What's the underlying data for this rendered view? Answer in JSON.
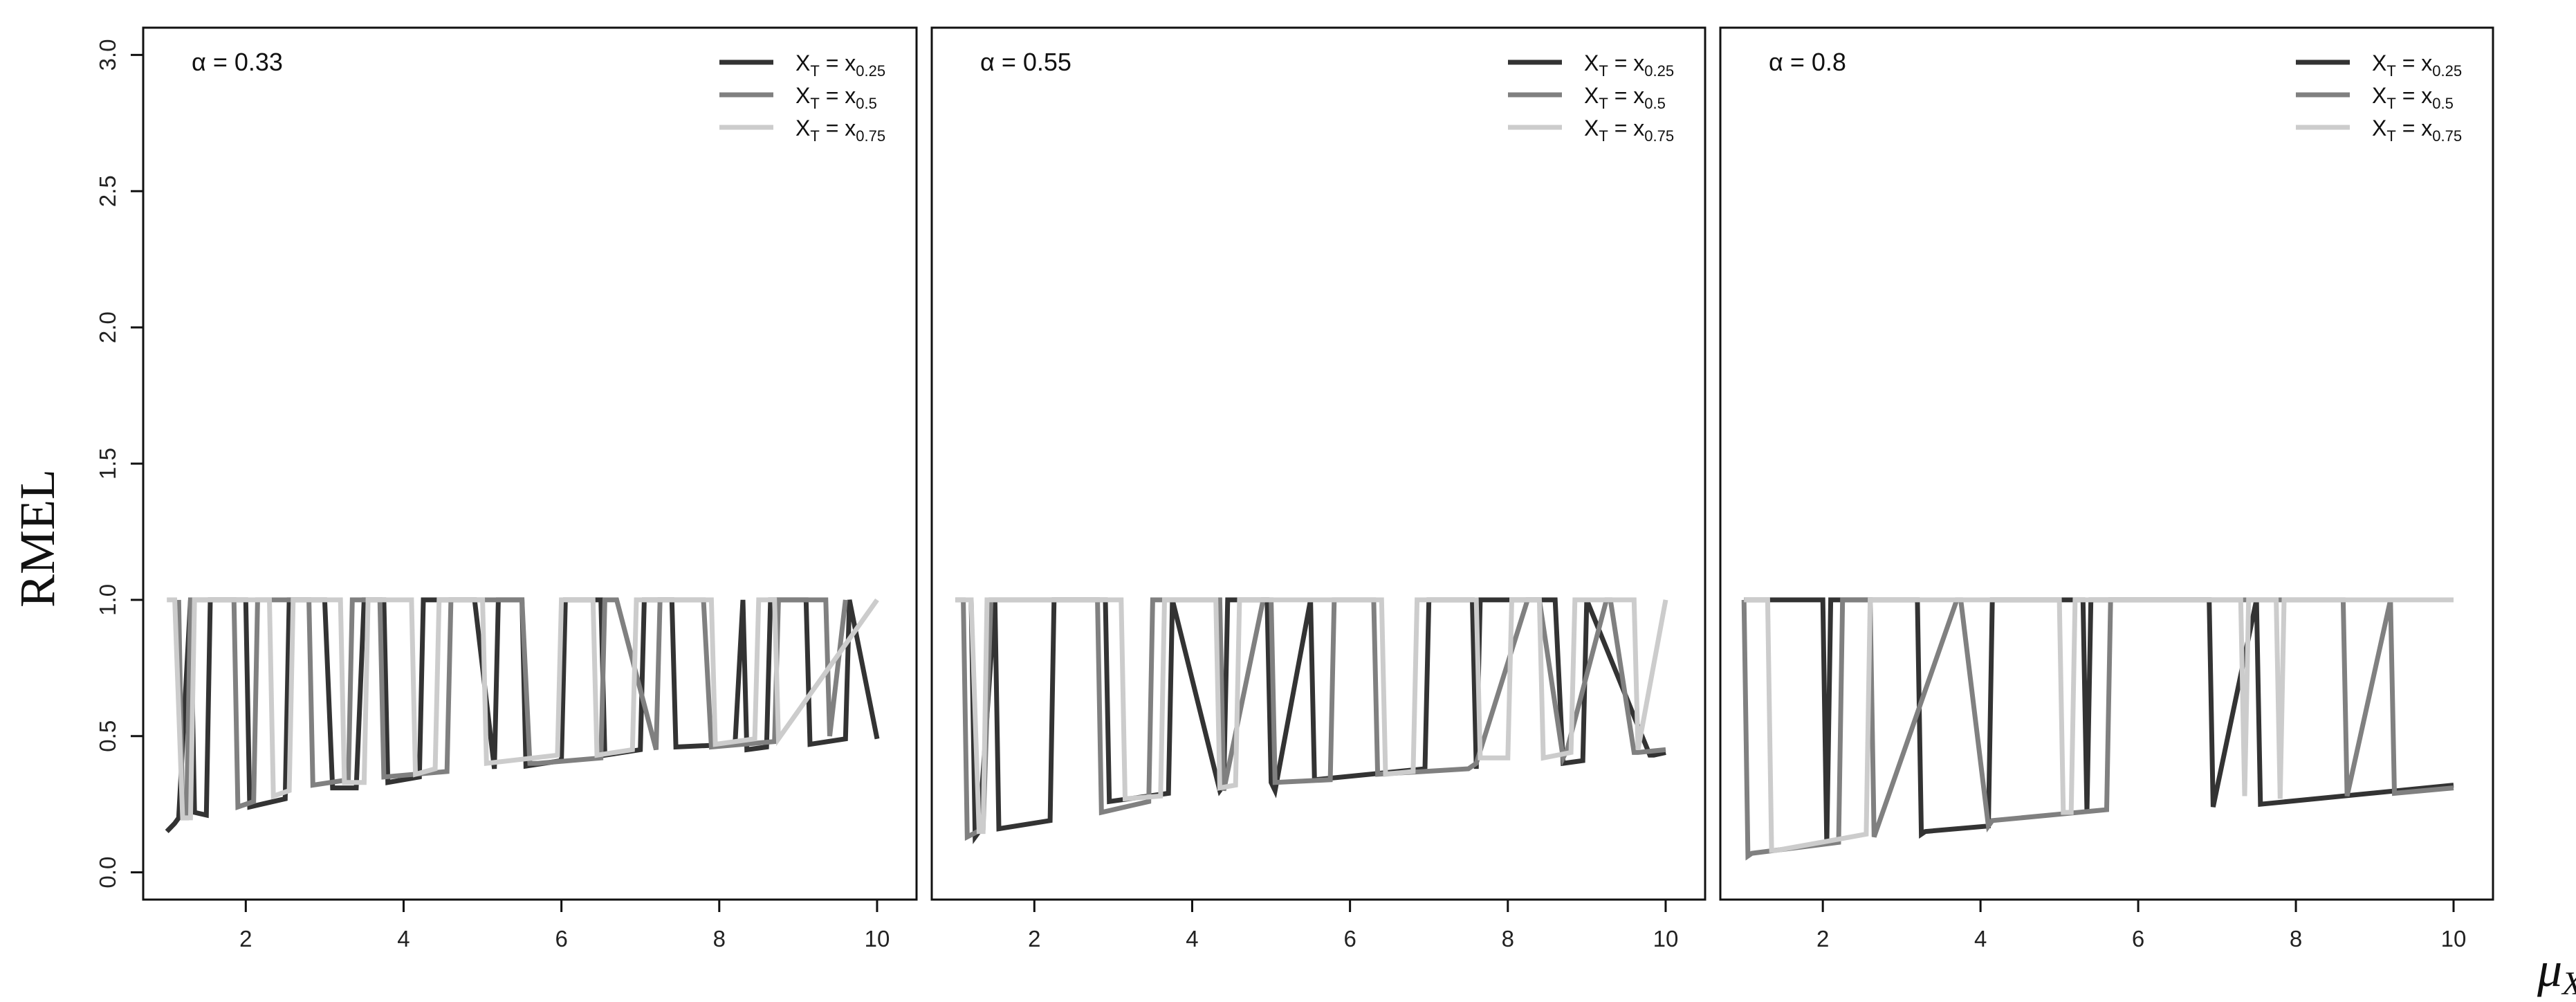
{
  "chart_data": {
    "type": "line",
    "ylabel": "RMEL",
    "xlabel": "μ",
    "xlabel_sub": "X",
    "xlim": [
      0.7,
      10.5
    ],
    "ylim": [
      -0.1,
      3.1
    ],
    "xticks": [
      2,
      4,
      6,
      8,
      10
    ],
    "yticks": [
      0.0,
      0.5,
      1.0,
      1.5,
      2.0,
      2.5,
      3.0
    ],
    "ytick_labels": [
      "0.0",
      "0.5",
      "1.0",
      "1.5",
      "2.0",
      "2.5",
      "3.0"
    ],
    "legend_position": "top-right",
    "legend": [
      {
        "base": "X",
        "base_sub": "T",
        "eq": " = x",
        "sub": "0.25",
        "color": "#333333"
      },
      {
        "base": "X",
        "base_sub": "T",
        "eq": " = x",
        "sub": "0.5",
        "color": "#808080"
      },
      {
        "base": "X",
        "base_sub": "T",
        "eq": " = x",
        "sub": "0.75",
        "color": "#cccccc"
      }
    ],
    "panels": [
      {
        "title": "α = 0.33",
        "series": [
          {
            "color": "#333333",
            "x": [
              1.0,
              1.1,
              1.15,
              1.3,
              1.35,
              1.5,
              1.55,
              2.0,
              2.05,
              2.5,
              2.55,
              3.0,
              3.1,
              3.4,
              3.5,
              3.75,
              3.8,
              4.2,
              4.25,
              4.9,
              5.15,
              5.2,
              5.5,
              5.55,
              6.0,
              6.05,
              6.5,
              6.55,
              7.0,
              7.05,
              7.4,
              7.45,
              8.2,
              8.3,
              8.35,
              8.6,
              8.65,
              9.1,
              9.15,
              9.6,
              9.65,
              10.0
            ],
            "y": [
              0.15,
              0.18,
              0.2,
              1.0,
              0.22,
              0.21,
              1.0,
              1.0,
              0.24,
              0.27,
              1.0,
              1.0,
              0.31,
              0.31,
              1.0,
              1.0,
              0.33,
              0.35,
              1.0,
              1.0,
              0.38,
              1.0,
              1.0,
              0.39,
              0.41,
              1.0,
              1.0,
              0.43,
              0.45,
              1.0,
              1.0,
              0.46,
              0.47,
              1.0,
              0.45,
              0.46,
              1.0,
              1.0,
              0.47,
              0.49,
              1.0,
              0.49
            ]
          },
          {
            "color": "#808080",
            "x": [
              1.15,
              1.2,
              1.25,
              1.3,
              1.5,
              1.85,
              1.9,
              2.1,
              2.15,
              2.8,
              2.85,
              3.3,
              3.35,
              3.7,
              3.75,
              4.55,
              4.6,
              4.7,
              5.5,
              5.6,
              5.7,
              6.5,
              6.55,
              6.7,
              7.2,
              7.25,
              7.8,
              7.9,
              8.7,
              8.75,
              9.35,
              9.4,
              9.6
            ],
            "y": [
              1.0,
              0.2,
              0.2,
              1.0,
              1.0,
              1.0,
              0.24,
              0.26,
              1.0,
              1.0,
              0.32,
              0.34,
              1.0,
              1.0,
              0.35,
              0.37,
              1.0,
              1.0,
              1.0,
              0.4,
              0.4,
              0.42,
              1.0,
              1.0,
              0.45,
              1.0,
              1.0,
              0.46,
              0.48,
              1.0,
              1.0,
              0.5,
              1.0
            ]
          },
          {
            "color": "#cccccc",
            "x": [
              1.0,
              1.1,
              1.2,
              1.3,
              1.35,
              2.3,
              2.35,
              2.55,
              2.6,
              3.2,
              3.25,
              3.5,
              3.55,
              4.1,
              4.15,
              4.4,
              4.45,
              5.0,
              5.05,
              5.95,
              6.0,
              6.4,
              6.45,
              6.9,
              6.95,
              7.9,
              7.95,
              8.45,
              8.5,
              8.7,
              8.75,
              10.0
            ],
            "y": [
              1.0,
              1.0,
              0.2,
              0.2,
              1.0,
              1.0,
              0.28,
              0.3,
              1.0,
              1.0,
              0.33,
              0.33,
              1.0,
              1.0,
              0.36,
              0.38,
              1.0,
              1.0,
              0.4,
              0.43,
              1.0,
              1.0,
              0.43,
              0.45,
              1.0,
              1.0,
              0.47,
              0.49,
              1.0,
              1.0,
              0.49,
              1.0
            ]
          }
        ]
      },
      {
        "title": "α = 0.55",
        "series": [
          {
            "color": "#333333",
            "x": [
              1.2,
              1.25,
              1.3,
              1.5,
              1.55,
              2.2,
              2.25,
              2.9,
              2.95,
              3.7,
              3.75,
              4.35,
              4.4,
              4.45,
              4.95,
              5.0,
              5.05,
              5.5,
              5.55,
              6.95,
              7.0,
              7.55,
              7.6,
              7.65,
              8.6,
              8.7,
              8.95,
              9.0,
              9.8,
              9.85,
              10.0
            ],
            "y": [
              1.0,
              0.13,
              0.15,
              1.0,
              0.16,
              0.19,
              1.0,
              1.0,
              0.26,
              0.29,
              1.0,
              0.3,
              0.32,
              1.0,
              1.0,
              0.33,
              0.3,
              1.0,
              0.34,
              0.38,
              1.0,
              1.0,
              0.38,
              1.0,
              1.0,
              0.4,
              0.41,
              1.0,
              0.43,
              0.43,
              0.44
            ]
          },
          {
            "color": "#808080",
            "x": [
              1.0,
              1.1,
              1.15,
              1.35,
              1.45,
              1.6,
              2.8,
              2.85,
              3.45,
              3.5,
              4.35,
              4.4,
              4.9,
              5.0,
              5.05,
              5.75,
              5.8,
              6.3,
              6.35,
              7.5,
              7.6,
              8.25,
              8.4,
              8.7,
              8.75,
              9.25,
              9.3,
              9.6,
              9.65,
              10.0
            ],
            "y": [
              1.0,
              1.0,
              0.13,
              0.16,
              1.0,
              1.0,
              1.0,
              0.22,
              0.26,
              1.0,
              1.0,
              0.3,
              1.0,
              1.0,
              0.33,
              0.34,
              1.0,
              1.0,
              0.36,
              0.38,
              0.4,
              1.0,
              1.0,
              0.42,
              0.45,
              1.0,
              1.0,
              0.44,
              0.44,
              0.45
            ]
          },
          {
            "color": "#cccccc",
            "x": [
              1.0,
              1.2,
              1.3,
              1.35,
              1.4,
              3.1,
              3.15,
              3.6,
              3.65,
              4.3,
              4.35,
              4.55,
              4.6,
              6.4,
              6.45,
              6.8,
              6.85,
              7.6,
              7.65,
              8.0,
              8.05,
              8.4,
              8.45,
              8.8,
              8.85,
              9.6,
              9.65,
              10.0
            ],
            "y": [
              1.0,
              1.0,
              0.15,
              0.15,
              1.0,
              1.0,
              0.27,
              0.28,
              1.0,
              1.0,
              0.31,
              0.32,
              1.0,
              1.0,
              0.36,
              0.37,
              1.0,
              1.0,
              0.42,
              0.42,
              1.0,
              1.0,
              0.42,
              0.44,
              1.0,
              1.0,
              0.45,
              1.0
            ]
          }
        ]
      },
      {
        "title": "α = 0.8",
        "series": [
          {
            "color": "#333333",
            "x": [
              1.0,
              2.0,
              2.05,
              2.1,
              3.2,
              3.25,
              3.3,
              4.1,
              4.15,
              5.3,
              5.35,
              5.4,
              6.9,
              6.95,
              7.5,
              7.55,
              10.0
            ],
            "y": [
              1.0,
              1.0,
              0.1,
              1.0,
              1.0,
              0.14,
              0.15,
              0.17,
              1.0,
              1.0,
              0.22,
              1.0,
              1.0,
              0.24,
              1.0,
              0.25,
              0.32
            ]
          },
          {
            "color": "#808080",
            "x": [
              1.0,
              1.05,
              1.1,
              2.2,
              2.25,
              2.3,
              2.6,
              2.65,
              3.7,
              3.75,
              4.1,
              4.15,
              5.6,
              5.65,
              5.7,
              8.6,
              8.65,
              9.2,
              9.25,
              10.0
            ],
            "y": [
              1.0,
              0.06,
              0.07,
              0.11,
              1.0,
              1.0,
              1.0,
              0.13,
              1.0,
              1.0,
              0.17,
              0.19,
              0.23,
              1.0,
              1.0,
              1.0,
              0.28,
              1.0,
              0.29,
              0.31
            ]
          },
          {
            "color": "#cccccc",
            "x": [
              1.0,
              1.3,
              1.35,
              1.4,
              2.55,
              2.6,
              2.65,
              5.0,
              5.05,
              5.15,
              5.2,
              7.3,
              7.35,
              7.4,
              7.75,
              7.8,
              7.85,
              10.0
            ],
            "y": [
              1.0,
              1.0,
              0.08,
              0.08,
              0.14,
              1.0,
              1.0,
              1.0,
              0.22,
              0.22,
              1.0,
              1.0,
              0.28,
              1.0,
              1.0,
              0.27,
              1.0,
              1.0
            ]
          }
        ]
      }
    ]
  }
}
